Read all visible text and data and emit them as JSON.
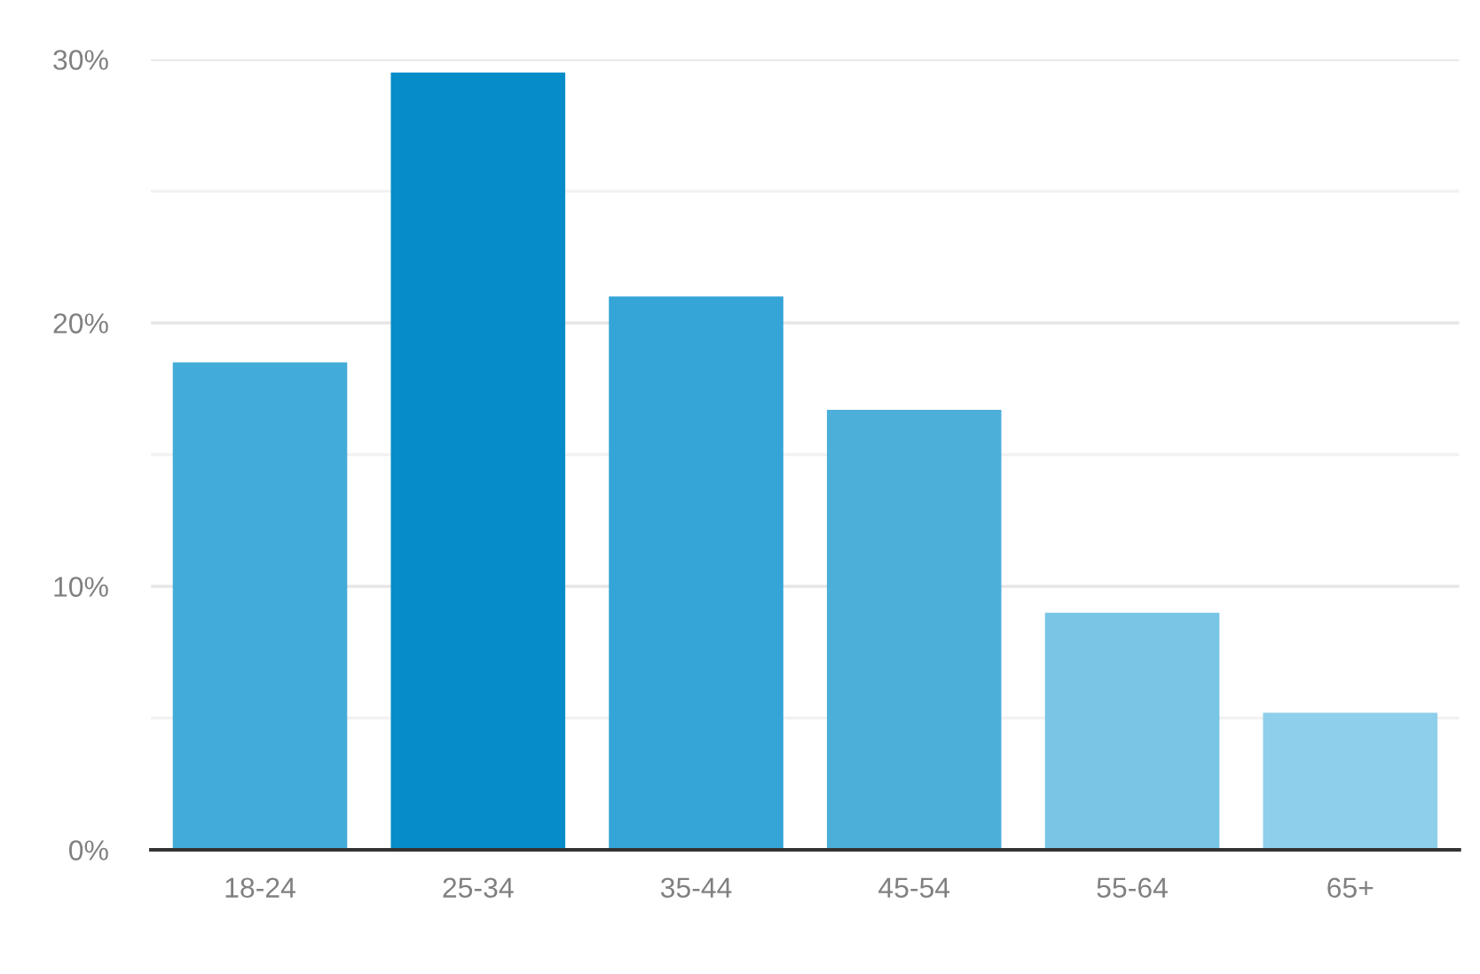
{
  "chart_data": {
    "type": "bar",
    "categories": [
      "18-24",
      "25-34",
      "35-44",
      "45-54",
      "55-64",
      "65+"
    ],
    "values": [
      18.5,
      29.5,
      21.0,
      16.7,
      9.0,
      5.2
    ],
    "colors": [
      "#43abd8",
      "#068cc8",
      "#34a5d6",
      "#4cafda",
      "#78c5e5",
      "#8ecfeb"
    ],
    "ylim": [
      0,
      30
    ],
    "yticks": [
      {
        "value": 0,
        "label": "0%"
      },
      {
        "value": 5,
        "label": null
      },
      {
        "value": 10,
        "label": "10%"
      },
      {
        "value": 15,
        "label": null
      },
      {
        "value": 20,
        "label": "20%"
      },
      {
        "value": 25,
        "label": null
      },
      {
        "value": 30,
        "label": "30%"
      }
    ],
    "grid": "y"
  }
}
